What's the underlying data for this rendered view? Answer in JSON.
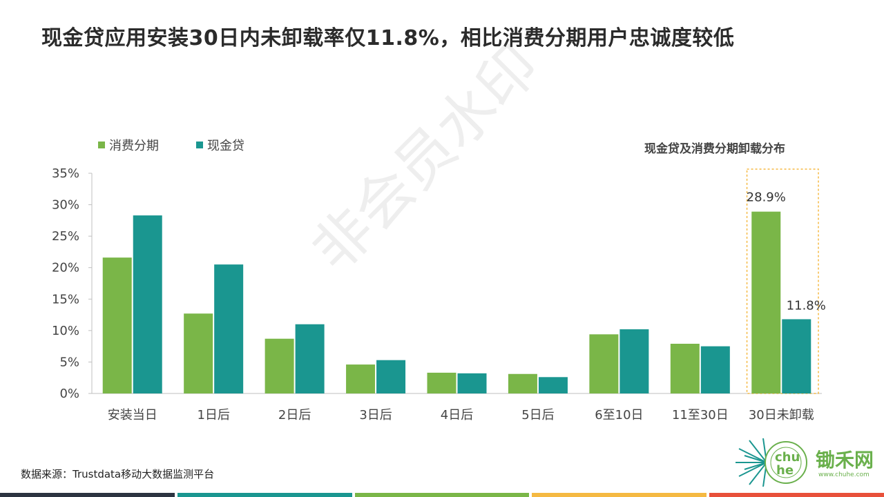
{
  "page": {
    "title": "现金贷应用安装30日内未卸载率仅11.8%，相比消费分期用户忠诚度较低",
    "source": "数据来源：Trustdata移动大数据监测平台",
    "watermark": "非会员水印",
    "brand": {
      "name": "锄禾网",
      "url": "www.chuhe.com"
    },
    "footer_colors": [
      "#2c3441",
      "#1a9690",
      "#7ab648",
      "#f5b942",
      "#e8503a"
    ]
  },
  "colors": {
    "consumer": "#7ab648",
    "cash": "#1a9690",
    "highlight_box": "#f5b942"
  },
  "chart_data": {
    "type": "bar",
    "title": "现金贷及消费分期卸载分布",
    "categories": [
      "安装当日",
      "1日后",
      "2日后",
      "3日后",
      "4日后",
      "5日后",
      "6至10日",
      "11至30日",
      "30日未卸载"
    ],
    "series": [
      {
        "name": "消费分期",
        "values": [
          21.6,
          12.7,
          8.7,
          4.6,
          3.3,
          3.1,
          9.4,
          7.9,
          28.9
        ]
      },
      {
        "name": "现金贷",
        "values": [
          28.3,
          20.5,
          11.0,
          5.3,
          3.2,
          2.6,
          10.2,
          7.5,
          11.8
        ]
      }
    ],
    "yticks": [
      "0%",
      "5%",
      "10%",
      "15%",
      "20%",
      "25%",
      "30%",
      "35%"
    ],
    "ylim": [
      0,
      35
    ],
    "highlight_category": "30日未卸载",
    "data_labels": {
      "consumer_last": "28.9%",
      "cash_last": "11.8%"
    },
    "grid": false,
    "legend_position": "top-left"
  }
}
